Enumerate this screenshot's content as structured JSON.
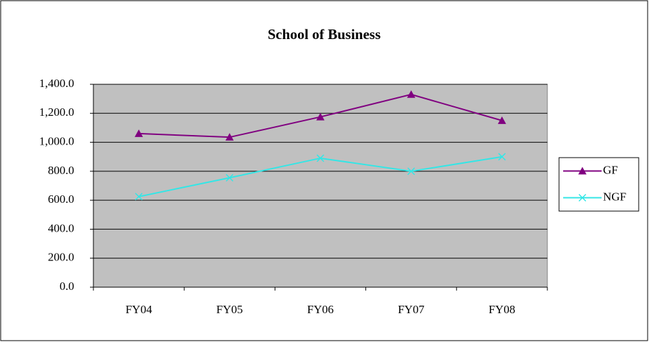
{
  "chart_data": {
    "type": "line",
    "title": "School of Business",
    "categories": [
      "FY04",
      "FY05",
      "FY06",
      "FY07",
      "FY08"
    ],
    "series": [
      {
        "name": "GF",
        "color": "#800080",
        "values": [
          1060,
          1035,
          1175,
          1330,
          1150
        ]
      },
      {
        "name": "NGF",
        "color": "#33e6e6",
        "values": [
          625,
          755,
          890,
          800,
          900
        ]
      }
    ],
    "ylim": [
      0,
      1400
    ],
    "yticks": [
      {
        "value": 0,
        "label": "0.0"
      },
      {
        "value": 200,
        "label": "200.0"
      },
      {
        "value": 400,
        "label": "400.0"
      },
      {
        "value": 600,
        "label": "600.0"
      },
      {
        "value": 800,
        "label": "800.0"
      },
      {
        "value": 1000,
        "label": "1,000.0"
      },
      {
        "value": 1200,
        "label": "1,200.0"
      },
      {
        "value": 1400,
        "label": "1,400.0"
      }
    ],
    "grid": true,
    "legend": "right"
  }
}
